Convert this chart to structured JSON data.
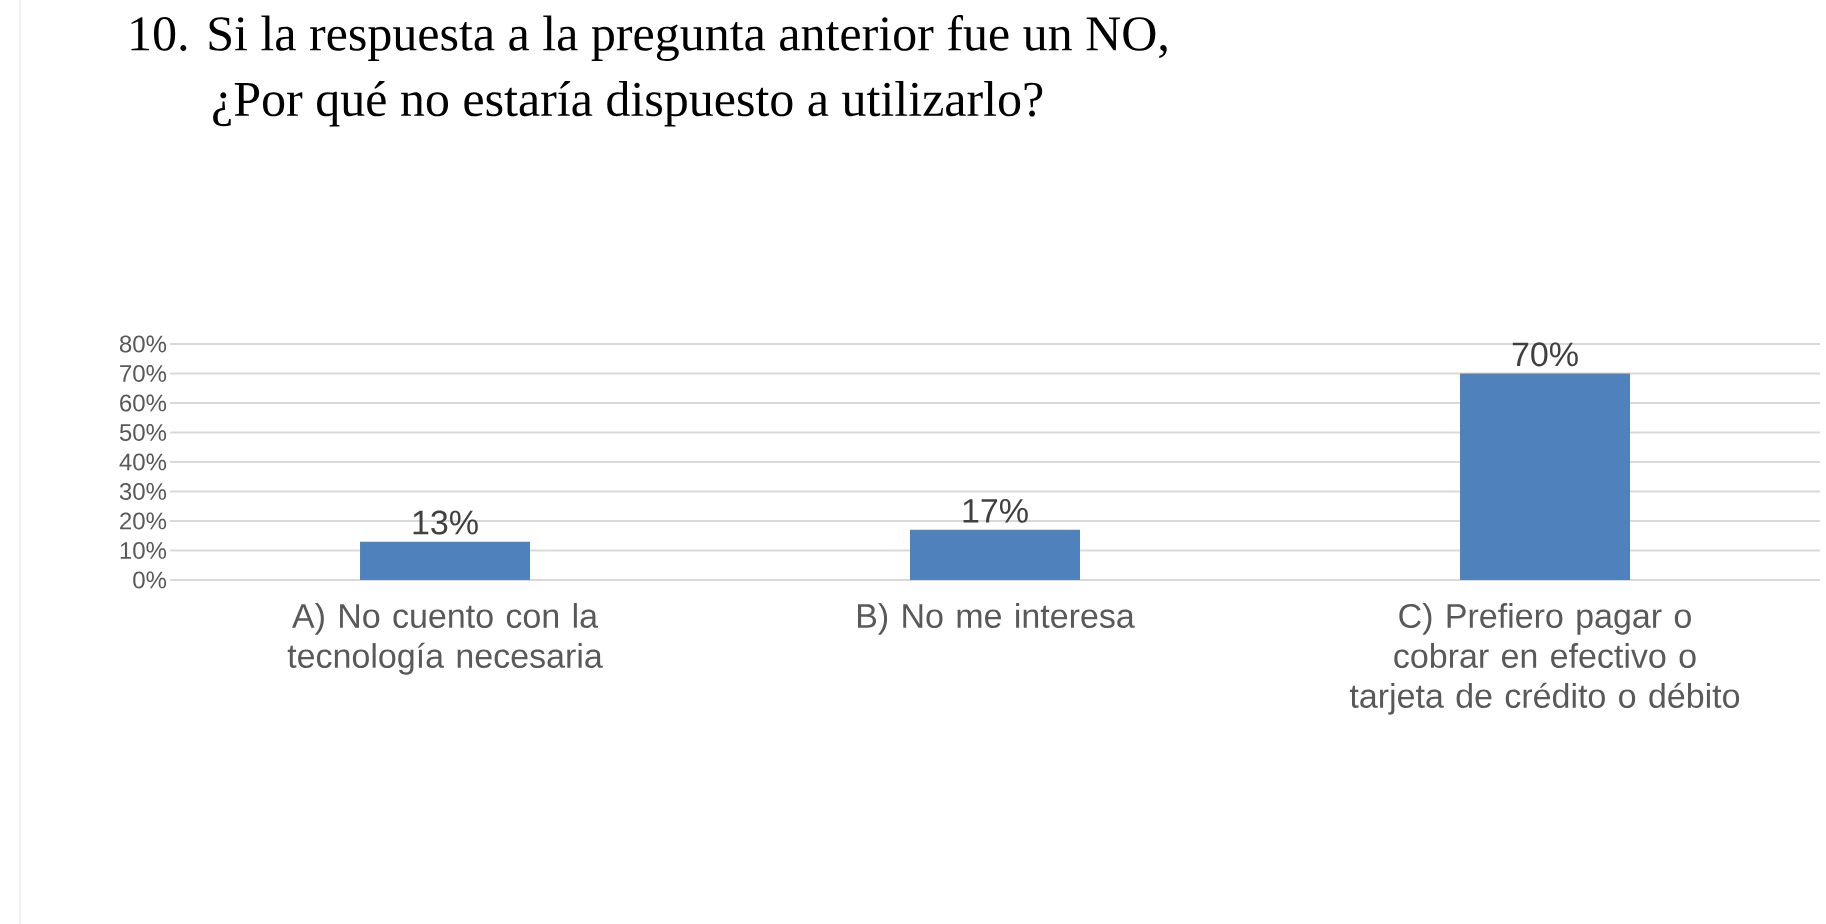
{
  "chart_data": {
    "type": "bar",
    "title": "10. Si la respuesta a la pregunta anterior fue un NO,",
    "subtitle": "¿Por qué no estaría dispuesto a utilizarlo?",
    "categories": [
      "A) No cuento con la tecnología necesaria",
      "B) No me interesa",
      "C) Prefiero pagar o cobrar en efectivo o tarjeta de crédito o débito"
    ],
    "values": [
      13,
      17,
      70
    ],
    "value_labels": [
      "13%",
      "17%",
      "70%"
    ],
    "color": "#4f81bd",
    "ylim": [
      0,
      80
    ],
    "yticks": [
      {
        "value": 0,
        "label": "0%"
      },
      {
        "value": 10,
        "label": "10%"
      },
      {
        "value": 20,
        "label": "20%"
      },
      {
        "value": 30,
        "label": "30%"
      },
      {
        "value": 40,
        "label": "40%"
      },
      {
        "value": 50,
        "label": "50%"
      },
      {
        "value": 60,
        "label": "60%"
      },
      {
        "value": 70,
        "label": "70%"
      },
      {
        "value": 80,
        "label": "80%"
      }
    ],
    "grid": "y"
  }
}
